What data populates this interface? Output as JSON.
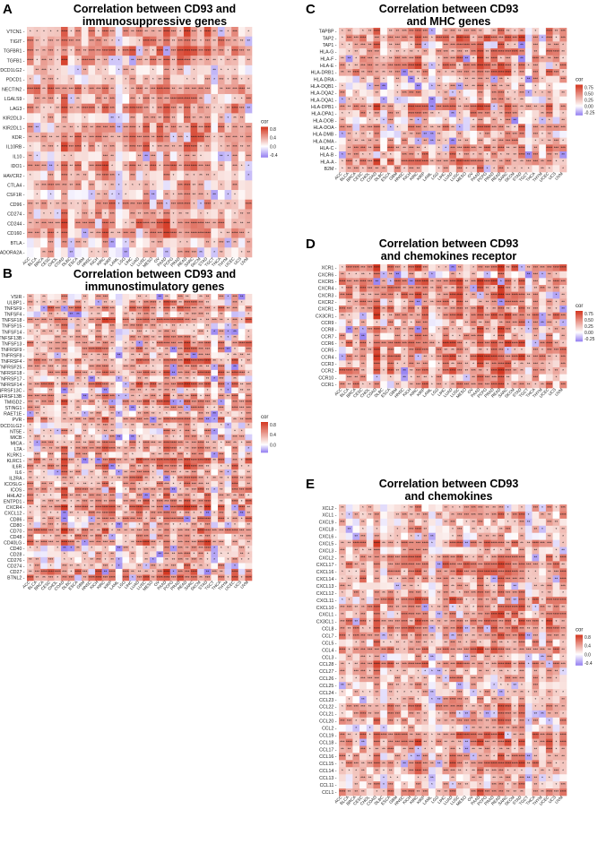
{
  "cancers": [
    "ACC",
    "BLCA",
    "BRCA",
    "CESC",
    "CHOL",
    "COAD",
    "DLBC",
    "ESCA",
    "GBM",
    "HNSC",
    "KICH",
    "KIRC",
    "KIRP",
    "LAML",
    "LGG",
    "LIHC",
    "LUAD",
    "LUSC",
    "MESO",
    "OV",
    "PAAD",
    "PCPG",
    "PRAD",
    "READ",
    "SARC",
    "SKCM",
    "STAD",
    "TGCT",
    "THCA",
    "THYM",
    "UCEC",
    "UCS",
    "UVM"
  ],
  "legend_title": "cor",
  "colors": {
    "low": "#9a86f2",
    "mid": "#ffffff",
    "high": "#d43822",
    "stars": "#1a1a1a"
  },
  "chart_data": [
    {
      "id": "A",
      "type": "heatmap",
      "title_lines": [
        "Correlation between CD93 and",
        "immunosuppressive genes"
      ],
      "genes": [
        "VTCN1",
        "TIGIT",
        "TGFBR1",
        "TGFB1",
        "PDCD1LG2",
        "PDCD1",
        "NECTIN2",
        "LGALS9",
        "LAG3",
        "KIR2DL3",
        "KIR2DL1",
        "KDR",
        "IL10RB",
        "IL10",
        "IDO1",
        "HAVCR2",
        "CTLA4",
        "CSF1R",
        "CD96",
        "CD274",
        "CD244",
        "CD160",
        "BTLA",
        "ADORA2A"
      ],
      "legend_ticks": [
        {
          "v": 0.8,
          "t": "0.8"
        },
        {
          "v": 0.4,
          "t": "0.4"
        },
        {
          "v": 0.0,
          "t": "0.0"
        },
        {
          "v": -0.4,
          "t": "-0.4"
        }
      ],
      "range": [
        -0.5,
        0.9
      ]
    },
    {
      "id": "B",
      "type": "heatmap",
      "title_lines": [
        "Correlation between CD93 and",
        "immunostimulatory  genes"
      ],
      "genes": [
        "VSIR",
        "ULBP1",
        "TNFSF9",
        "TNFSF4",
        "TNFSF18",
        "TNFSF15",
        "TNFSF14",
        "TNFSF13B",
        "TNFSF13",
        "TNFRSF9",
        "TNFRSF8",
        "TNFRSF4",
        "TNFRSF25",
        "TNFRSF18",
        "TNFRSF17",
        "TNFRSF14",
        "TNFRSF13C",
        "TNFRSF13B",
        "TMIGD2",
        "STING1",
        "RAET1E",
        "PVR",
        "PDCD1LG2",
        "NT5E",
        "MICB",
        "MICA",
        "LTA",
        "KLRK1",
        "KLRC1",
        "IL6R",
        "IL6",
        "IL2RA",
        "ICOSLG",
        "ICOS",
        "HHLA2",
        "ENTPD1",
        "CXCR4",
        "CXCL12",
        "CD86",
        "CD80",
        "CD70",
        "CD48",
        "CD40LG",
        "CD40",
        "CD28",
        "CD276",
        "CD274",
        "CD27",
        "BTNL2"
      ],
      "legend_ticks": [
        {
          "v": 0.8,
          "t": "0.8"
        },
        {
          "v": 0.4,
          "t": "0.4"
        },
        {
          "v": 0.0,
          "t": "0.0"
        }
      ],
      "range": [
        -0.3,
        0.9
      ]
    },
    {
      "id": "C",
      "type": "heatmap",
      "title_lines": [
        "Correlation between CD93",
        "and MHC genes"
      ],
      "genes": [
        "TAPBP",
        "TAP2",
        "TAP1",
        "HLA-G",
        "HLA-F",
        "HLA-E",
        "HLA-DRB1",
        "HLA-DRA",
        "HLA-DQB1",
        "HLA-DQA2",
        "HLA-DQA1",
        "HLA-DPB1",
        "HLA-DPA1",
        "HLA-DOB",
        "HLA-DOA",
        "HLA-DMB",
        "HLA-DMA",
        "HLA-C",
        "HLA-B",
        "HLA-A",
        "B2M"
      ],
      "legend_ticks": [
        {
          "v": 0.75,
          "t": "0.75"
        },
        {
          "v": 0.5,
          "t": "0.50"
        },
        {
          "v": 0.25,
          "t": "0.25"
        },
        {
          "v": 0.0,
          "t": "0.00"
        },
        {
          "v": -0.25,
          "t": "-0.25"
        }
      ],
      "range": [
        -0.35,
        0.85
      ]
    },
    {
      "id": "D",
      "type": "heatmap",
      "title_lines": [
        "Correlation between CD93",
        "and chemokines receptor"
      ],
      "genes": [
        "XCR1",
        "CXCR6",
        "CXCR5",
        "CXCR4",
        "CXCR3",
        "CXCR2",
        "CXCR1",
        "CX3CR1",
        "CCR9",
        "CCR8",
        "CCR7",
        "CCR6",
        "CCR5",
        "CCR4",
        "CCR3",
        "CCR2",
        "CCR10",
        "CCR1"
      ],
      "legend_ticks": [
        {
          "v": 0.75,
          "t": "0.75"
        },
        {
          "v": 0.5,
          "t": "0.50"
        },
        {
          "v": 0.25,
          "t": "0.25"
        },
        {
          "v": 0.0,
          "t": "0.00"
        },
        {
          "v": -0.25,
          "t": "-0.25"
        }
      ],
      "range": [
        -0.35,
        0.85
      ]
    },
    {
      "id": "E",
      "type": "heatmap",
      "title_lines": [
        "Correlation between CD93",
        "and chemokines"
      ],
      "genes": [
        "XCL2",
        "XCL1",
        "CXCL9",
        "CXCL8",
        "CXCL6",
        "CXCL5",
        "CXCL3",
        "CXCL2",
        "CXCL17",
        "CXCL16",
        "CXCL14",
        "CXCL13",
        "CXCL12",
        "CXCL11",
        "CXCL10",
        "CXCL1",
        "CX3CL1",
        "CCL8",
        "CCL7",
        "CCL5",
        "CCL4",
        "CCL3",
        "CCL28",
        "CCL27",
        "CCL26",
        "CCL25",
        "CCL24",
        "CCL23",
        "CCL22",
        "CCL21",
        "CCL20",
        "CCL2",
        "CCL19",
        "CCL18",
        "CCL17",
        "CCL16",
        "CCL15",
        "CCL14",
        "CCL13",
        "CCL11",
        "CCL1"
      ],
      "legend_ticks": [
        {
          "v": 0.8,
          "t": "0.8"
        },
        {
          "v": 0.4,
          "t": "0.4"
        },
        {
          "v": 0.0,
          "t": "0.0"
        },
        {
          "v": -0.4,
          "t": "-0.4"
        }
      ],
      "range": [
        -0.5,
        0.9
      ]
    }
  ]
}
